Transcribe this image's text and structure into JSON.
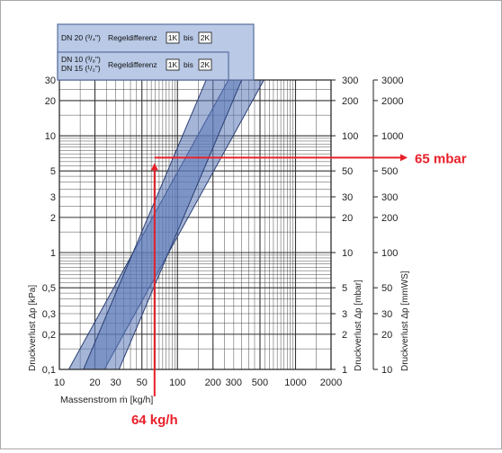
{
  "chart_data": {
    "type": "line",
    "x_axis": {
      "scale": "log",
      "range": [
        10,
        2000
      ],
      "tick_labels": [
        "10",
        "20",
        "30",
        "50",
        "100",
        "200",
        "300",
        "500",
        "1000",
        "2000"
      ],
      "label": "Massenstrom ṁ [kg/h]"
    },
    "y_axis_kpa": {
      "scale": "log",
      "range": [
        0.1,
        30
      ],
      "tick_labels": [
        "30",
        "20",
        "10",
        "5",
        "3",
        "2",
        "1",
        "0,5",
        "0,3",
        "0,2",
        "0,1"
      ],
      "label": "Druckverlust Δp [kPa]"
    },
    "y_axis_mbar": {
      "scale": "log",
      "range": [
        1,
        300
      ],
      "tick_labels": [
        "300",
        "200",
        "100",
        "50",
        "30",
        "20",
        "10",
        "5",
        "3",
        "2",
        "1"
      ],
      "label": "Druckverlust Δp [mbar]"
    },
    "y_axis_mmws": {
      "scale": "log",
      "range": [
        10,
        3000
      ],
      "tick_labels": [
        "3000",
        "2000",
        "1000",
        "500",
        "300",
        "200",
        "100",
        "50",
        "30",
        "20",
        "10"
      ],
      "label": "Druckverlust Δp [mmWS]"
    },
    "bands": [
      {
        "name": "DN 20 (3/4\")",
        "label_lines": [
          "DN 20 (³/₄\")"
        ],
        "caption": "Regeldifferenz",
        "from": "1K",
        "bis": "bis",
        "to": "2K",
        "color": "#5b79b8",
        "edges_kpa": [
          {
            "x": [
              12,
              270
            ],
            "y": [
              0.1,
              30
            ]
          },
          {
            "x": [
              24,
              540
            ],
            "y": [
              0.1,
              30
            ]
          }
        ]
      },
      {
        "name": "DN 10 (3/8\") / DN 15 (1/2\")",
        "label_lines": [
          "DN 10 (³/₈\")",
          "DN 15 (¹/₂\")"
        ],
        "caption": "Regeldifferenz",
        "from": "1K",
        "bis": "bis",
        "to": "2K",
        "color": "#5b79b8",
        "edges_kpa": [
          {
            "x": [
              16,
              175
            ],
            "y": [
              0.1,
              30
            ]
          },
          {
            "x": [
              32,
              350
            ],
            "y": [
              0.1,
              30
            ]
          }
        ]
      }
    ],
    "reading": {
      "flow_kg_h": 64,
      "pressure_mbar": 65,
      "flow_label": "64 kg/h",
      "pressure_label": "65 mbar",
      "color": "#e8202a"
    },
    "grid": true,
    "title": ""
  }
}
